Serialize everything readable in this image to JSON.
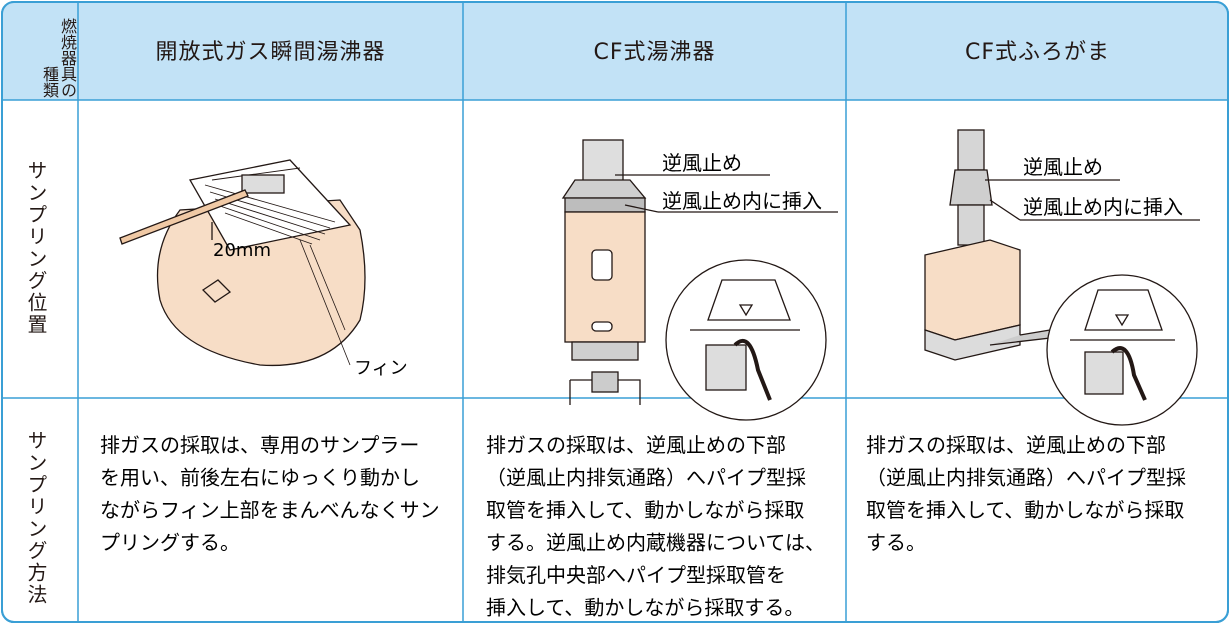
{
  "table": {
    "corner_label": "燃焼器具の種類",
    "columns": [
      "開放式ガス瞬間湯沸器",
      "CF式湯沸器",
      "CF式ふろがま"
    ],
    "position_row": {
      "label": "サンプリング位置",
      "diagrams": [
        {
          "labels": [
            "20mm",
            "フィン"
          ]
        },
        {
          "labels": [
            "逆風止め",
            "逆風止め内に挿入"
          ]
        },
        {
          "labels": [
            "逆風止め",
            "逆風止め内に挿入"
          ]
        }
      ]
    },
    "method_row": {
      "label": "サンプリング方法",
      "texts": [
        [
          "排ガスの採取は、専用のサンプラー",
          "を用い、前後左右にゆっくり動かし",
          "ながらフィン上部をまんべんなくサン",
          "プリングする。"
        ],
        [
          "排ガスの採取は、逆風止めの下部",
          "（逆風止内排気通路）へパイプ型採",
          "取管を挿入して、動かしながら採取",
          "する。逆風止め内蔵機器については、",
          "排気孔中央部へパイプ型採取管を",
          "挿入して、動かしながら採取する。"
        ],
        [
          "排ガスの採取は、逆風止めの下部",
          "（逆風止内排気通路）へパイプ型採",
          "取管を挿入して、動かしながら採取",
          "する。"
        ]
      ]
    }
  }
}
